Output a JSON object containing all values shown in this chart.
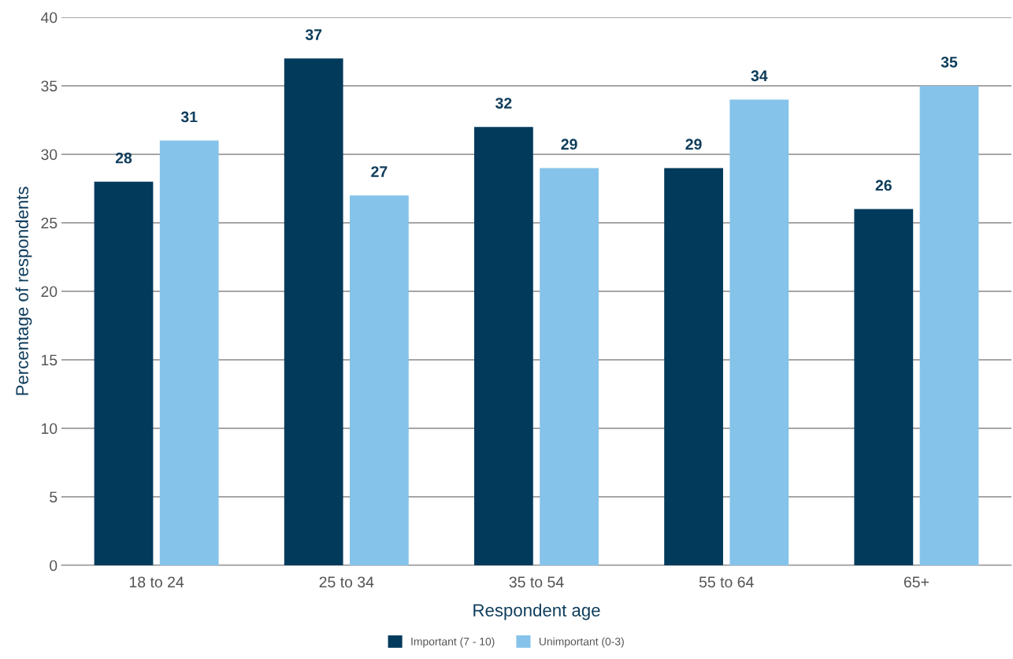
{
  "chart_data": {
    "type": "bar",
    "xlabel": "Respondent age",
    "ylabel": "Percentage of respondents",
    "categories": [
      "18 to 24",
      "25 to 34",
      "35 to 54",
      "55 to 64",
      "65+"
    ],
    "series": [
      {
        "name": "Important (7 - 10)",
        "color": "#023a5c",
        "values": [
          28,
          37,
          32,
          29,
          26
        ]
      },
      {
        "name": "Unimportant (0-3)",
        "color": "#85c3ea",
        "values": [
          31,
          27,
          29,
          34,
          35
        ]
      }
    ],
    "ylim": [
      0,
      40
    ],
    "yticks": [
      0,
      5,
      10,
      15,
      20,
      25,
      30,
      35,
      40
    ],
    "grid": "y",
    "legend": "bottom",
    "data_labels": true
  }
}
